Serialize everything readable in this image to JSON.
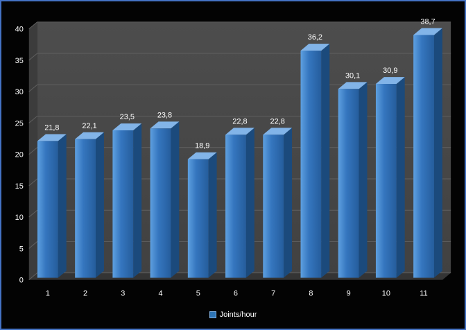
{
  "window": {
    "background": "#030303",
    "border_color": "#4472C4"
  },
  "chart_data": {
    "type": "bar",
    "style": "3d-column",
    "title": "",
    "xlabel": "",
    "ylabel": "",
    "categories": [
      "1",
      "2",
      "3",
      "4",
      "5",
      "6",
      "7",
      "8",
      "9",
      "10",
      "11"
    ],
    "values": [
      21.8,
      22.1,
      23.5,
      23.8,
      18.9,
      22.8,
      22.8,
      36.2,
      30.1,
      30.9,
      38.7
    ],
    "data_labels": [
      "21,8",
      "22,1",
      "23,5",
      "23,8",
      "18,9",
      "22,8",
      "22,8",
      "36,2",
      "30,1",
      "30,9",
      "38,7"
    ],
    "y_ticks": [
      0,
      5,
      10,
      15,
      20,
      25,
      30,
      35,
      40
    ],
    "ylim": [
      0,
      40
    ],
    "grid": true,
    "legend": {
      "label": "Joints/hour",
      "position": "bottom",
      "marker_color": "#2E75B6"
    },
    "colors": {
      "bar_front_light": "#5EA0E0",
      "bar_front_mid": "#3576BF",
      "bar_front_dark": "#255D9C",
      "bar_top": "#82B4E8",
      "bar_side": "#1B4A7C",
      "wall_top": "#4D4D4D",
      "wall_bottom": "#414141",
      "side_wall": "#3C3C3C",
      "floor": "#343434",
      "gridline": "#606060",
      "text": "#FFFFFF"
    }
  }
}
